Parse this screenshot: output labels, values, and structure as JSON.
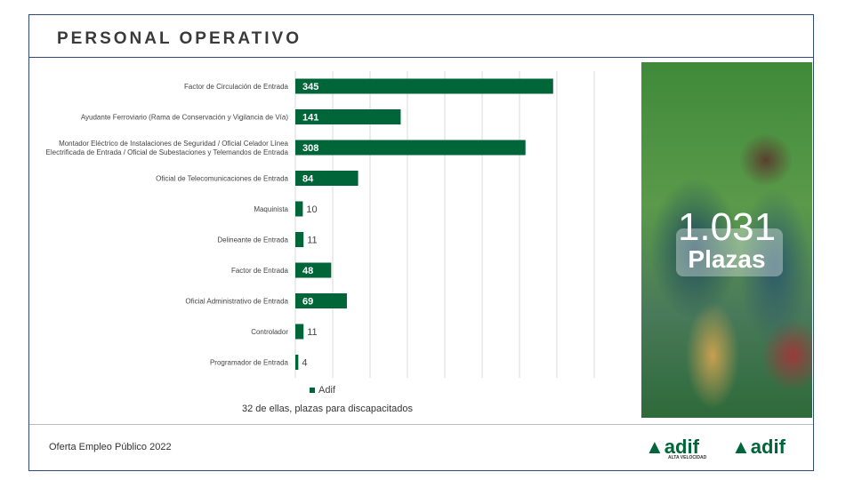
{
  "header": {
    "title": "PERSONAL OPERATIVO"
  },
  "footer": {
    "text": "Oferta Empleo Público 2022",
    "logos": [
      {
        "text": "adif",
        "sub": "ALTA VELOCIDAD"
      },
      {
        "text": "adif"
      }
    ]
  },
  "highlight": {
    "number": "1.031",
    "label": "Plazas"
  },
  "chart_data": {
    "type": "bar",
    "orientation": "horizontal",
    "categories": [
      "Factor de Circulación de Entrada",
      "Ayudante Ferroviario (Rama de Conservación y Vigilancia de Vía)",
      "Montador Eléctrico de Instalaciones de Seguridad / Oficial Celador Línea|Electrificada de Entrada / Oficial de Subestaciones y Telemandos de Entrada",
      "Oficial de Telecomunicaciones de Entrada",
      "Maquinista",
      "Delineante de Entrada",
      "Factor de Entrada",
      "Oficial Administrativo de Entrada",
      "Controlador",
      "Programador de Entrada"
    ],
    "series": [
      {
        "name": "Adif",
        "values": [
          345,
          141,
          308,
          84,
          10,
          11,
          48,
          69,
          11,
          4
        ],
        "color": "#00663a"
      }
    ],
    "xlim": [
      0,
      400
    ],
    "grid": true,
    "legend": "bottom",
    "note": "32 de ellas, plazas para discapacitados"
  }
}
